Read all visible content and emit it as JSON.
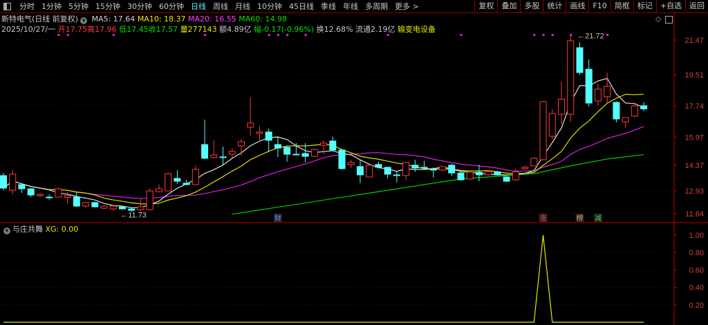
{
  "toolbar": {
    "tabs": [
      "分时",
      "1分钟",
      "5分钟",
      "15分钟",
      "30分钟",
      "60分钟",
      "日线",
      "周线",
      "月线",
      "10分钟",
      "45日线",
      "季线",
      "年线",
      "多周期",
      "更多 >"
    ],
    "active_tab": "日线",
    "buttons": [
      "复权",
      "叠加",
      "多股",
      "统计",
      "画线",
      "F10",
      "简框",
      "标记",
      "+自选",
      "返回"
    ]
  },
  "header": {
    "title": "新特电气(日线 前复权)",
    "ma5": "MA5: 17.64",
    "ma10": "MA10: 18.37",
    "ma20": "MA20: 16.55",
    "ma60": "MA60: 14.98",
    "date": "2025/10/27/一",
    "open": "开17.75",
    "high": "高17.96",
    "low": "低17.45",
    "close": "收17.57",
    "volume": "量277143",
    "amount": "额4.89亿",
    "change": "幅-0.17(-0.96%)",
    "turnover": "换12.68%",
    "float": "流通2.19亿",
    "sector": "输变电设备"
  },
  "indicator": {
    "name": "与庄共舞",
    "value": "XG: 0.00"
  },
  "colors": {
    "up": "#ff3b3b",
    "down": "#54ffff",
    "ma5": "#e0e0e0",
    "ma10": "#e0e000",
    "ma20": "#e020e0",
    "ma60": "#00d000",
    "grid": "#6a0000",
    "axis": "#c00000",
    "xg": "#e8e800",
    "dots": "#e020e0"
  },
  "chart_data": [
    {
      "type": "candlestick",
      "ylim": [
        11.4,
        21.9
      ],
      "y_ticks": [
        "21.47",
        "19.51",
        "17.74",
        "15.97",
        "14.37",
        "12.93",
        "11.64"
      ],
      "grid": true,
      "ohlc": [
        [
          13.79,
          13.94,
          12.96,
          13.08
        ],
        [
          12.96,
          14.1,
          12.73,
          13.87
        ],
        [
          13.28,
          13.36,
          12.81,
          13.04
        ],
        [
          13.04,
          13.08,
          12.57,
          12.69
        ],
        [
          12.65,
          12.77,
          12.57,
          12.73
        ],
        [
          12.57,
          12.73,
          12.42,
          12.55
        ],
        [
          12.57,
          13.12,
          12.55,
          13.04
        ],
        [
          12.55,
          12.85,
          12.18,
          12.65
        ],
        [
          12.57,
          12.85,
          12.02,
          12.06
        ],
        [
          12.06,
          12.3,
          11.98,
          12.26
        ],
        [
          12.26,
          12.3,
          11.98,
          12.02
        ],
        [
          11.94,
          12.1,
          11.9,
          12.06
        ],
        [
          11.9,
          12.1,
          11.82,
          12.06
        ],
        [
          12.02,
          12.06,
          11.86,
          11.9
        ],
        [
          11.9,
          11.98,
          11.73,
          11.82
        ],
        [
          11.86,
          12.5,
          11.78,
          12.02
        ],
        [
          11.86,
          13.08,
          11.82,
          12.92
        ],
        [
          12.88,
          13.3,
          12.88,
          13.04
        ],
        [
          12.92,
          13.94,
          12.92,
          13.9
        ],
        [
          13.63,
          14.1,
          13.3,
          13.47
        ],
        [
          13.36,
          13.55,
          13.24,
          13.28
        ],
        [
          13.28,
          14.34,
          13.28,
          14.14
        ],
        [
          15.55,
          16.96,
          14.73,
          14.77
        ],
        [
          14.81,
          15.79,
          14.77,
          14.96
        ],
        [
          14.85,
          15.43,
          14.42,
          14.81
        ],
        [
          15.0,
          15.35,
          14.81,
          15.16
        ],
        [
          15.47,
          15.86,
          14.92,
          15.71
        ],
        [
          16.53,
          18.24,
          16.06,
          16.77
        ],
        [
          16.18,
          16.61,
          15.75,
          16.26
        ],
        [
          16.26,
          16.46,
          15.12,
          15.79
        ],
        [
          15.55,
          16.02,
          14.85,
          15.35
        ],
        [
          15.39,
          15.47,
          14.57,
          15.0
        ],
        [
          15.0,
          15.63,
          14.96,
          14.98
        ],
        [
          15.04,
          15.63,
          14.53,
          14.88
        ],
        [
          14.88,
          15.31,
          14.85,
          15.27
        ],
        [
          15.51,
          15.78,
          15.0,
          15.63
        ],
        [
          15.75,
          16.0,
          15.2,
          15.24
        ],
        [
          15.24,
          15.3,
          14.14,
          14.18
        ],
        [
          14.42,
          14.69,
          14.22,
          14.53
        ],
        [
          14.3,
          14.69,
          13.36,
          13.83
        ],
        [
          13.71,
          14.4,
          13.7,
          14.38
        ],
        [
          14.42,
          14.57,
          14.22,
          14.26
        ],
        [
          14.26,
          14.3,
          13.63,
          13.87
        ],
        [
          13.83,
          14.06,
          13.4,
          13.8
        ],
        [
          13.79,
          14.57,
          13.55,
          14.53
        ],
        [
          14.38,
          14.69,
          14.0,
          14.22
        ],
        [
          14.26,
          14.63,
          14.14,
          14.24
        ],
        [
          14.14,
          14.26,
          13.69,
          14.12
        ],
        [
          14.1,
          14.34,
          14.06,
          14.3
        ],
        [
          14.38,
          14.46,
          13.75,
          13.94
        ],
        [
          13.94,
          14.0,
          13.5,
          13.55
        ],
        [
          13.59,
          14.02,
          13.55,
          13.98
        ],
        [
          13.98,
          14.41,
          13.47,
          13.83
        ],
        [
          13.83,
          14.1,
          13.79,
          14.02
        ],
        [
          14.0,
          14.06,
          13.79,
          13.83
        ],
        [
          13.71,
          13.75,
          13.43,
          13.47
        ],
        [
          13.55,
          14.18,
          13.51,
          14.0
        ],
        [
          14.18,
          14.34,
          14.14,
          14.26
        ],
        [
          14.34,
          14.85,
          14.38,
          14.77
        ],
        [
          14.69,
          18.02,
          14.65,
          17.98
        ],
        [
          16.02,
          17.55,
          15.86,
          17.31
        ],
        [
          17.27,
          19.12,
          16.7,
          18.12
        ],
        [
          17.27,
          21.72,
          16.84,
          21.43
        ],
        [
          21.04,
          21.35,
          19.51,
          19.63
        ],
        [
          19.82,
          20.37,
          17.7,
          17.9
        ],
        [
          18.02,
          19.0,
          17.74,
          18.69
        ],
        [
          18.26,
          19.63,
          17.9,
          18.85
        ],
        [
          17.94,
          18.0,
          16.8,
          17.0
        ],
        [
          16.84,
          17.1,
          16.5,
          17.08
        ],
        [
          17.16,
          17.9,
          17.1,
          17.74
        ],
        [
          17.75,
          17.96,
          17.45,
          17.57
        ]
      ],
      "ma60_points": [
        [
          25,
          11.6
        ],
        [
          50,
          13.6
        ],
        [
          58,
          13.9
        ],
        [
          62,
          14.34
        ],
        [
          66,
          14.73
        ],
        [
          70,
          14.98
        ]
      ],
      "annotations": {
        "high": {
          "index": 62,
          "label": "21.72"
        },
        "low": {
          "index": 14,
          "label": "11.73"
        }
      },
      "event_markers": [
        {
          "index": 30,
          "label": "财"
        },
        {
          "index": 59,
          "label": "涨"
        },
        {
          "index": 63,
          "label": "榜"
        },
        {
          "index": 65,
          "label": "减"
        }
      ],
      "signal_dots": [
        6,
        7,
        12,
        22,
        29,
        30,
        31,
        33,
        42,
        50,
        58,
        59,
        60,
        62,
        66
      ]
    },
    {
      "type": "line",
      "name": "XG",
      "ylim": [
        0,
        1.05
      ],
      "y_ticks": [
        "1.00",
        "0.80",
        "0.60",
        "0.40",
        "0.20"
      ],
      "spikes": [
        {
          "index": 59,
          "value": 1.0
        }
      ],
      "length": 71
    }
  ]
}
